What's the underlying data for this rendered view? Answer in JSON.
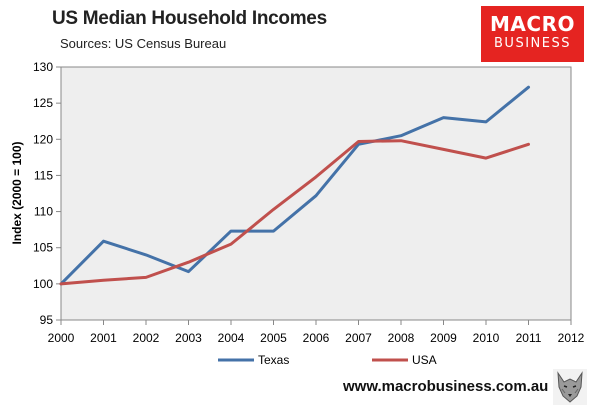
{
  "header": {
    "title": "US Median Household Incomes",
    "subtitle": "Sources: US Census Bureau"
  },
  "logo": {
    "line1": "MACRO",
    "line2": "BUSINESS",
    "color": "#e52421"
  },
  "footer": {
    "url": "www.macrobusiness.com.au",
    "icon": "wolf-icon"
  },
  "chart_data": {
    "type": "line",
    "title": "US Median Household Incomes",
    "subtitle": "Sources: US Census Bureau",
    "xlabel": "",
    "ylabel": "Index (2000 = 100)",
    "xlim": [
      2000,
      2012
    ],
    "ylim": [
      95,
      130
    ],
    "x_ticks": [
      "2000",
      "2001",
      "2002",
      "2003",
      "2004",
      "2005",
      "2006",
      "2007",
      "2008",
      "2009",
      "2010",
      "2011",
      "2012"
    ],
    "y_ticks": [
      "95",
      "100",
      "105",
      "110",
      "115",
      "120",
      "125",
      "130"
    ],
    "grid": "none",
    "background": "#eeeeee",
    "legend_position": "bottom",
    "x": [
      2000,
      2001,
      2002,
      2003,
      2004,
      2005,
      2006,
      2007,
      2008,
      2009,
      2010,
      2011
    ],
    "series": [
      {
        "name": "Texas",
        "color": "#4472a8",
        "values": [
          100.0,
          105.9,
          104.0,
          101.7,
          107.3,
          107.3,
          112.2,
          119.3,
          120.5,
          123.0,
          122.4,
          127.2
        ]
      },
      {
        "name": "USA",
        "color": "#c0504d",
        "values": [
          100.0,
          100.5,
          100.9,
          103.0,
          105.5,
          110.3,
          114.8,
          119.7,
          119.8,
          118.6,
          117.4,
          119.3
        ]
      }
    ]
  }
}
